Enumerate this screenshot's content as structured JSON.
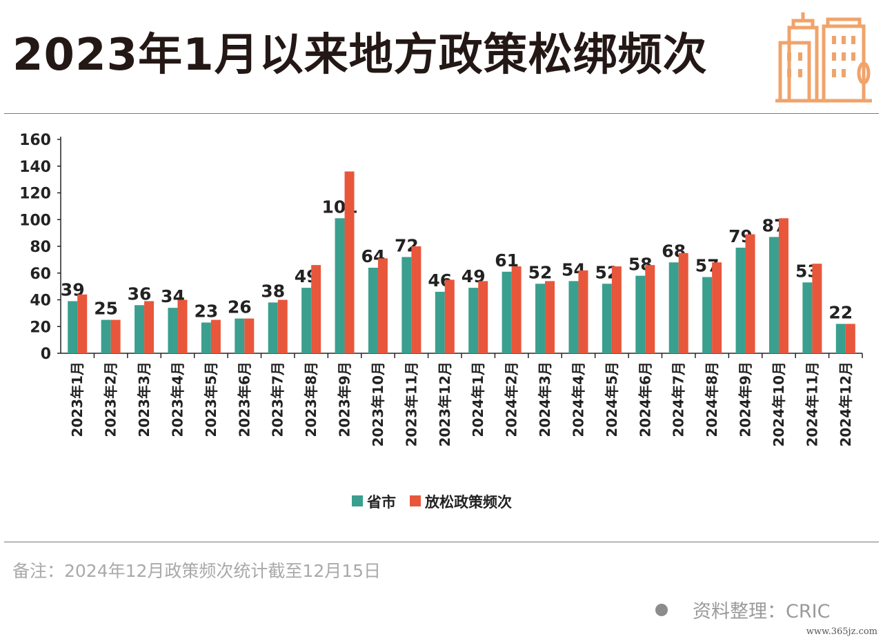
{
  "title": "2023年1月以来地方政策松绑频次",
  "note": "备注：2024年12月政策频次统计截至12月15日",
  "source": "资料整理：CRIC",
  "watermark": "www.365jz.com",
  "logo_icon": "buildings-icon",
  "colors": {
    "series1": "#3a9f8e",
    "series2": "#e8573c",
    "axis": "#222222",
    "logo": "#f0a36a"
  },
  "chart_data": {
    "type": "bar",
    "title": "2023年1月以来地方政策松绑频次",
    "categories": [
      "2023年1月",
      "2023年2月",
      "2023年3月",
      "2023年4月",
      "2023年5月",
      "2023年6月",
      "2023年7月",
      "2023年8月",
      "2023年9月",
      "2023年10月",
      "2023年11月",
      "2023年12月",
      "2024年1月",
      "2024年2月",
      "2024年3月",
      "2024年4月",
      "2024年5月",
      "2024年6月",
      "2024年7月",
      "2024年8月",
      "2024年9月",
      "2024年10月",
      "2024年11月",
      "2024年12月"
    ],
    "series": [
      {
        "name": "省市",
        "values": [
          39,
          25,
          36,
          34,
          23,
          26,
          38,
          49,
          101,
          64,
          72,
          46,
          49,
          61,
          52,
          54,
          52,
          58,
          68,
          57,
          79,
          87,
          53,
          22
        ],
        "labeled": true
      },
      {
        "name": "放松政策频次",
        "values": [
          44,
          25,
          39,
          40,
          25,
          26,
          40,
          66,
          136,
          71,
          80,
          55,
          54,
          65,
          54,
          62,
          65,
          66,
          75,
          68,
          89,
          101,
          67,
          22
        ],
        "labeled": false
      }
    ],
    "ylim": [
      0,
      160
    ],
    "yticks": [
      0,
      20,
      40,
      60,
      80,
      100,
      120,
      140,
      160
    ],
    "xlabel": "",
    "ylabel": "",
    "grid": false,
    "legend_position": "bottom-center"
  }
}
